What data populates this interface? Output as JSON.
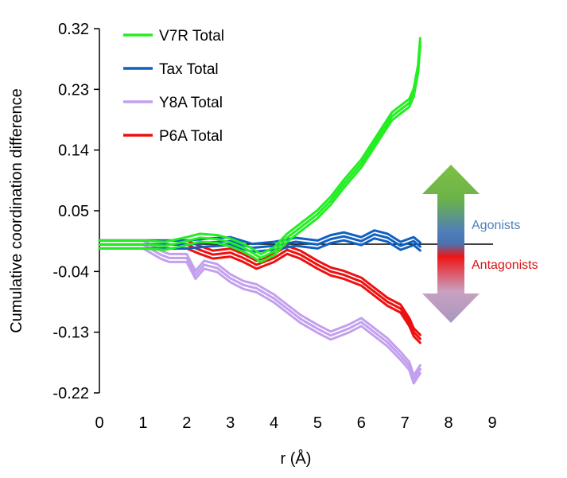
{
  "chart_data": {
    "type": "line",
    "title": "",
    "xlabel": "r (Å)",
    "ylabel": "Cumulative coordination difference",
    "xlim": [
      0,
      9
    ],
    "ylim": [
      -0.22,
      0.32
    ],
    "xticks": [
      "0",
      "1",
      "2",
      "3",
      "4",
      "5",
      "6",
      "7",
      "8",
      "9"
    ],
    "yticks": [
      "0.32",
      "0.23",
      "0.14",
      "0.05",
      "-0.04",
      "-0.13",
      "-0.22"
    ],
    "legend_position": "top-left",
    "grid": false,
    "series": [
      {
        "name": "V7R Total",
        "color": "#22ee22",
        "x": [
          0,
          1,
          1.5,
          2,
          2.3,
          2.7,
          3,
          3.3,
          3.5,
          3.7,
          4,
          4.3,
          4.6,
          5,
          5.3,
          5.6,
          6,
          6.3,
          6.5,
          6.7,
          6.9,
          7.1,
          7.2,
          7.3,
          7.35
        ],
        "values": [
          0.0,
          0.0,
          -0.002,
          0.005,
          0.01,
          0.008,
          0.003,
          -0.005,
          -0.012,
          -0.02,
          -0.01,
          0.01,
          0.025,
          0.045,
          0.065,
          0.09,
          0.12,
          0.15,
          0.17,
          0.19,
          0.2,
          0.21,
          0.225,
          0.26,
          0.3
        ]
      },
      {
        "name": "Tax Total",
        "color": "#1060c0",
        "x": [
          0,
          1,
          2,
          2.5,
          3,
          3.5,
          4,
          4.5,
          5,
          5.3,
          5.6,
          6,
          6.3,
          6.6,
          6.9,
          7.2,
          7.35
        ],
        "values": [
          0.0,
          0.0,
          0.0,
          0.003,
          0.005,
          -0.005,
          -0.002,
          0.004,
          0.0,
          0.008,
          0.012,
          0.005,
          0.015,
          0.01,
          -0.002,
          0.005,
          -0.003
        ]
      },
      {
        "name": "Y8A Total",
        "color": "#c3a0ee",
        "x": [
          0,
          1,
          1.4,
          1.6,
          2,
          2.2,
          2.4,
          2.7,
          3,
          3.3,
          3.6,
          4,
          4.3,
          4.6,
          5,
          5.3,
          5.7,
          6,
          6.3,
          6.6,
          6.9,
          7.1,
          7.2,
          7.35
        ],
        "values": [
          0.0,
          0.0,
          -0.015,
          -0.02,
          -0.02,
          -0.045,
          -0.03,
          -0.035,
          -0.05,
          -0.06,
          -0.065,
          -0.08,
          -0.095,
          -0.11,
          -0.125,
          -0.135,
          -0.125,
          -0.115,
          -0.13,
          -0.145,
          -0.165,
          -0.18,
          -0.2,
          -0.185
        ]
      },
      {
        "name": "P6A Total",
        "color": "#ee1010",
        "x": [
          0,
          1,
          2,
          2.3,
          2.6,
          3,
          3.3,
          3.6,
          4,
          4.3,
          4.6,
          5,
          5.3,
          5.6,
          6,
          6.3,
          6.6,
          6.9,
          7.1,
          7.2,
          7.35
        ],
        "values": [
          0.0,
          0.0,
          0.0,
          -0.008,
          -0.015,
          -0.012,
          -0.02,
          -0.03,
          -0.02,
          -0.008,
          -0.015,
          -0.03,
          -0.04,
          -0.045,
          -0.055,
          -0.07,
          -0.085,
          -0.095,
          -0.115,
          -0.13,
          -0.14
        ]
      }
    ],
    "annotations": [
      {
        "text": "Agonists",
        "color": "#4f7fb8"
      },
      {
        "text": "Antagonists",
        "color": "#dd1111"
      }
    ]
  }
}
